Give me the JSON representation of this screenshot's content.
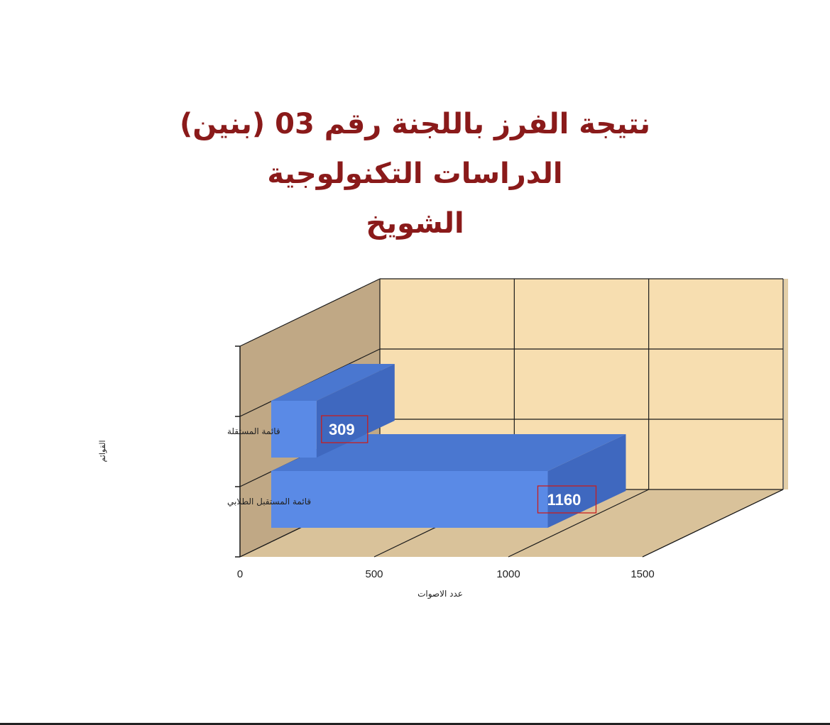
{
  "title_lines": [
    "نتيجة الفرز باللجنة رقم 03 (بنين)",
    "الدراسات التكنولوجية",
    "الشويخ"
  ],
  "chart_data": {
    "type": "bar",
    "orientation": "horizontal",
    "style": "3d",
    "categories": [
      "قائمة المستقبل الطلابي",
      "قائمة المستقلة"
    ],
    "values": [
      1160,
      309
    ],
    "data_labels": [
      "1160",
      "309"
    ],
    "xlabel": "عدد الاصوات",
    "ylabel": "القوائم",
    "xlim": [
      0,
      1500
    ],
    "x_ticks": [
      0,
      500,
      1000,
      1500
    ],
    "grid": true,
    "colors": {
      "bar_front": "#5a8ae6",
      "bar_top": "#4a77d0",
      "bar_side": "#3f68bf",
      "back_wall": "#f7deb0",
      "side_wall": "#c0a885",
      "floor": "#d9c29a",
      "label_box_border": "#c81e1e",
      "title": "#8a1a1a"
    }
  }
}
